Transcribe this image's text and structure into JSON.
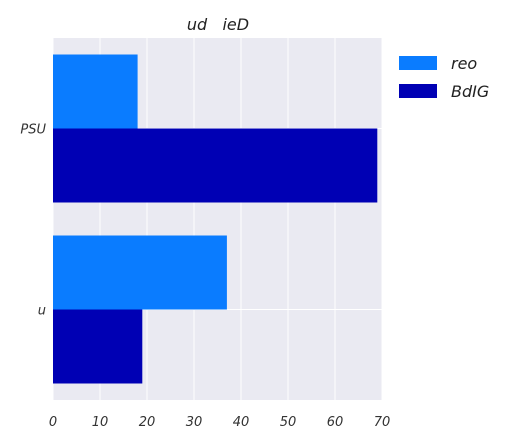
{
  "chart_data": {
    "type": "bar",
    "orientation": "horizontal",
    "title": "ud   ieD",
    "xlabel": "",
    "ylabel": "",
    "categories": [
      "PSU",
      "u"
    ],
    "series": [
      {
        "name": "reo",
        "values": [
          18,
          37
        ],
        "color": "#0a7cff"
      },
      {
        "name": "BdIG",
        "values": [
          69,
          19
        ],
        "color": "#0000b4"
      }
    ],
    "xlim": [
      0,
      70
    ],
    "xticks": [
      0,
      10,
      20,
      30,
      40,
      50,
      60,
      70
    ],
    "grid": true,
    "legend_position": "top-right",
    "background": "#eaeaf2",
    "grid_color": "#ffffff"
  }
}
